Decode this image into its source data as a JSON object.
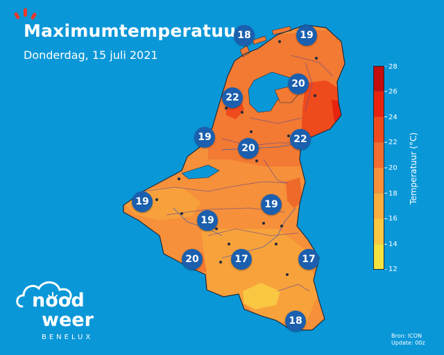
{
  "header": {
    "title": "Maximumtemperatuur",
    "subtitle": "Donderdag, 15 juli 2021"
  },
  "legend": {
    "title": "Temperatuur (°C)",
    "ticks": [
      "28",
      "26",
      "24",
      "22",
      "20",
      "18",
      "16",
      "14",
      "12"
    ],
    "levels": [
      {
        "from": 26,
        "to": 28,
        "color": "#c40d0d"
      },
      {
        "from": 24,
        "to": 26,
        "color": "#e8240f"
      },
      {
        "from": 22,
        "to": 24,
        "color": "#ee4a1c"
      },
      {
        "from": 20,
        "to": 22,
        "color": "#f26d2f"
      },
      {
        "from": 18,
        "to": 20,
        "color": "#f6903a"
      },
      {
        "from": 16,
        "to": 18,
        "color": "#f8ad3e"
      },
      {
        "from": 14,
        "to": 16,
        "color": "#f9c742"
      },
      {
        "from": 12,
        "to": 14,
        "color": "#f6e23f"
      }
    ],
    "range": [
      12,
      28
    ]
  },
  "stations": [
    {
      "value": "18"
    },
    {
      "value": "19"
    },
    {
      "value": "20"
    },
    {
      "value": "22"
    },
    {
      "value": "19"
    },
    {
      "value": "20"
    },
    {
      "value": "22"
    },
    {
      "value": "19"
    },
    {
      "value": "19"
    },
    {
      "value": "19"
    },
    {
      "value": "20"
    },
    {
      "value": "17"
    },
    {
      "value": "17"
    },
    {
      "value": "18"
    }
  ],
  "logo": {
    "line1": "nood",
    "line2": "weer",
    "line3": "BENELUX"
  },
  "source": {
    "line1": "Bron: ICON",
    "line2": "Update: 00z"
  },
  "colors": {
    "ocean": "#0a97d8",
    "marker": "#1b5fae",
    "land_base": "#f6903a",
    "border": "#1e2a3a"
  }
}
